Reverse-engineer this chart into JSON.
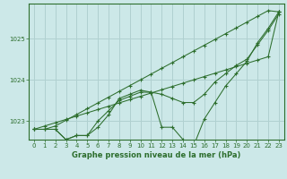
{
  "title": "Graphe pression niveau de la mer (hPa)",
  "bg_color": "#cce8e8",
  "grid_color": "#b0d0d0",
  "line_color": "#2d6e2d",
  "xlim": [
    -0.5,
    23.5
  ],
  "ylim": [
    1022.55,
    1025.85
  ],
  "yticks": [
    1023,
    1024,
    1025
  ],
  "xticks": [
    0,
    1,
    2,
    3,
    4,
    5,
    6,
    7,
    8,
    9,
    10,
    11,
    12,
    13,
    14,
    15,
    16,
    17,
    18,
    19,
    20,
    21,
    22,
    23
  ],
  "series": [
    [
      1022.8,
      1022.8,
      1022.8,
      1022.55,
      1022.65,
      1022.65,
      1022.85,
      1023.15,
      1023.55,
      1023.65,
      1023.75,
      1023.7,
      1022.85,
      1022.85,
      1022.55,
      1022.4,
      1023.05,
      1023.45,
      1023.85,
      1024.15,
      1024.45,
      1024.9,
      1025.25,
      1025.65
    ],
    [
      1022.8,
      1022.8,
      1022.8,
      1022.55,
      1022.65,
      1022.65,
      1023.0,
      1023.25,
      1023.5,
      1023.6,
      1023.7,
      1023.7,
      1023.65,
      1023.55,
      1023.45,
      1023.45,
      1023.65,
      1023.95,
      1024.15,
      1024.35,
      1024.5,
      1024.85,
      1025.2,
      1025.6
    ],
    [
      1022.8,
      1022.8,
      1022.88,
      1023.02,
      1023.16,
      1023.3,
      1023.44,
      1023.58,
      1023.72,
      1023.86,
      1024.0,
      1024.14,
      1024.28,
      1024.42,
      1024.56,
      1024.7,
      1024.84,
      1024.98,
      1025.12,
      1025.26,
      1025.4,
      1025.54,
      1025.68,
      1025.65
    ],
    [
      1022.8,
      1022.88,
      1022.96,
      1023.04,
      1023.12,
      1023.2,
      1023.28,
      1023.36,
      1023.44,
      1023.52,
      1023.6,
      1023.68,
      1023.76,
      1023.84,
      1023.92,
      1024.0,
      1024.08,
      1024.16,
      1024.24,
      1024.32,
      1024.4,
      1024.48,
      1024.56,
      1025.65
    ]
  ]
}
